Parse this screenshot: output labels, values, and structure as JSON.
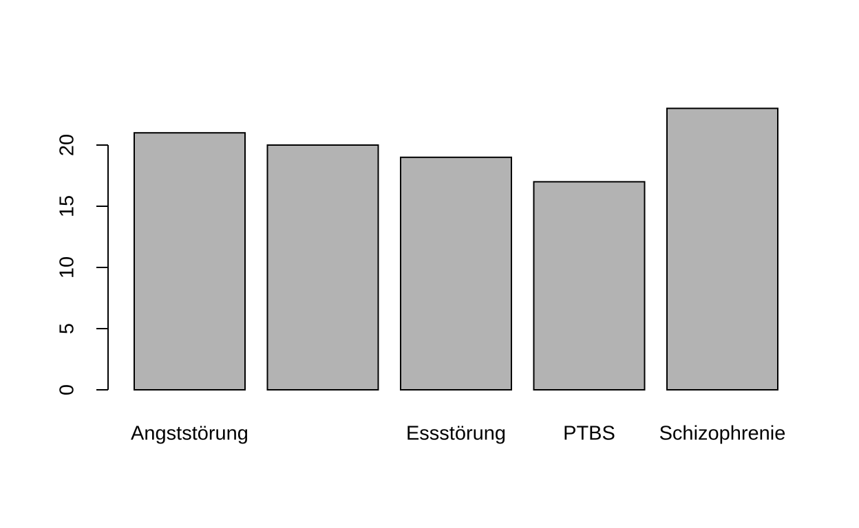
{
  "chart_data": {
    "type": "bar",
    "title": "",
    "xlabel": "",
    "ylabel": "",
    "categories": [
      "Angststörung",
      "",
      "Essstörung",
      "PTBS",
      "Schizophrenie"
    ],
    "values": [
      21,
      20,
      19,
      17,
      23
    ],
    "ylim": [
      0,
      23
    ],
    "yticks": [
      0,
      5,
      10,
      15,
      20
    ],
    "grid": false,
    "colors": {
      "bar_fill": "#b3b3b3",
      "bar_stroke": "#000000",
      "axis": "#000000"
    }
  }
}
